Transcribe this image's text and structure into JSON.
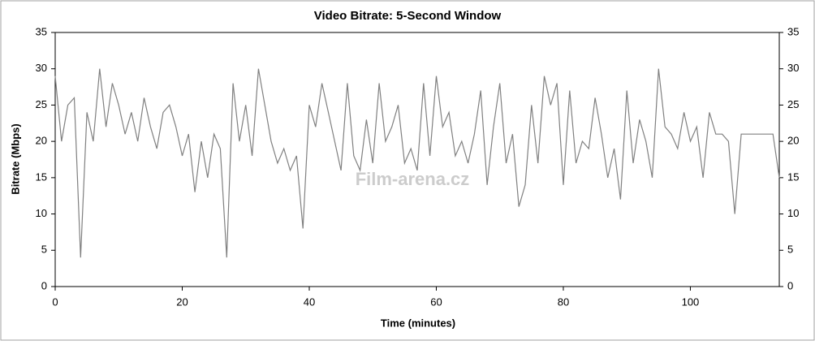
{
  "chart_data": {
    "type": "line",
    "title": "Video Bitrate: 5-Second Window",
    "x_label": "Time (minutes)",
    "y_label": "Bitrate (Mbps)",
    "watermark": "Film-arena.cz",
    "x": [
      0,
      1,
      2,
      3,
      4,
      5,
      6,
      7,
      8,
      9,
      10,
      11,
      12,
      13,
      14,
      15,
      16,
      17,
      18,
      19,
      20,
      21,
      22,
      23,
      24,
      25,
      26,
      27,
      28,
      29,
      30,
      31,
      32,
      33,
      34,
      35,
      36,
      37,
      38,
      39,
      40,
      41,
      42,
      43,
      44,
      45,
      46,
      47,
      48,
      49,
      50,
      51,
      52,
      53,
      54,
      55,
      56,
      57,
      58,
      59,
      60,
      61,
      62,
      63,
      64,
      65,
      66,
      67,
      68,
      69,
      70,
      71,
      72,
      73,
      74,
      75,
      76,
      77,
      78,
      79,
      80,
      81,
      82,
      83,
      84,
      85,
      86,
      87,
      88,
      89,
      90,
      91,
      92,
      93,
      94,
      95,
      96,
      97,
      98,
      99,
      100,
      101,
      102,
      103,
      104,
      105,
      106,
      107,
      108,
      109,
      110,
      111,
      112,
      113,
      114
    ],
    "series": [
      {
        "name": "Video Bitrate",
        "color": "#808080",
        "values": [
          29,
          20,
          25,
          26,
          4,
          24,
          20,
          30,
          22,
          28,
          25,
          21,
          24,
          20,
          26,
          22,
          19,
          24,
          25,
          22,
          18,
          21,
          13,
          20,
          15,
          21,
          19,
          4,
          28,
          20,
          25,
          18,
          30,
          25,
          20,
          17,
          19,
          16,
          18,
          8,
          25,
          22,
          28,
          24,
          20,
          16,
          28,
          18,
          16,
          23,
          17,
          28,
          20,
          22,
          25,
          17,
          19,
          16,
          28,
          18,
          29,
          22,
          24,
          18,
          20,
          17,
          21,
          27,
          14,
          22,
          28,
          17,
          21,
          11,
          14,
          25,
          17,
          29,
          25,
          28,
          14,
          27,
          17,
          20,
          19,
          26,
          21,
          15,
          19,
          12,
          27,
          17,
          23,
          20,
          15,
          30,
          22,
          21,
          19,
          24,
          20,
          22,
          15,
          24,
          21,
          21,
          20,
          10,
          21,
          21,
          21,
          21,
          21,
          21,
          15
        ]
      }
    ],
    "xlim": [
      0,
      114
    ],
    "xticks": [
      0,
      20,
      40,
      60,
      80,
      100
    ],
    "ylim": [
      0,
      35
    ],
    "yticks": [
      0,
      5,
      10,
      15,
      20,
      25,
      30,
      35
    ],
    "y2lim": [
      0,
      35
    ],
    "y2ticks": [
      0,
      5,
      10,
      15,
      20,
      25,
      30,
      35
    ],
    "grid": false
  }
}
